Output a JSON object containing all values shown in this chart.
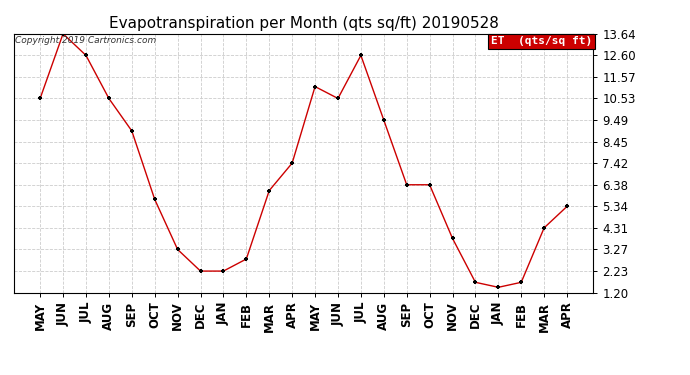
{
  "title": "Evapotranspiration per Month (qts sq/ft) 20190528",
  "copyright": "Copyright 2019 Cartronics.com",
  "legend_label": "ET  (qts/sq ft)",
  "months": [
    "MAY",
    "JUN",
    "JUL",
    "AUG",
    "SEP",
    "OCT",
    "NOV",
    "DEC",
    "JAN",
    "FEB",
    "MAR",
    "APR",
    "MAY",
    "JUN",
    "JUL",
    "AUG",
    "SEP",
    "OCT",
    "NOV",
    "DEC",
    "JAN",
    "FEB",
    "MAR",
    "APR"
  ],
  "values": [
    10.53,
    13.64,
    12.6,
    10.53,
    8.97,
    5.68,
    3.27,
    2.23,
    2.23,
    2.81,
    6.1,
    7.42,
    11.1,
    10.53,
    12.6,
    9.49,
    6.38,
    6.38,
    3.8,
    1.69,
    1.45,
    1.69,
    4.31,
    5.34
  ],
  "line_color": "#cc0000",
  "marker_color": "#000000",
  "background_color": "#ffffff",
  "grid_color": "#cccccc",
  "ylim_min": 1.2,
  "ylim_max": 13.64,
  "yticks": [
    1.2,
    2.23,
    3.27,
    4.31,
    5.34,
    6.38,
    7.42,
    8.45,
    9.49,
    10.53,
    11.57,
    12.6,
    13.64
  ],
  "legend_bg": "#cc0000",
  "legend_text_color": "#ffffff",
  "title_fontsize": 11,
  "copyright_fontsize": 6.5,
  "tick_fontsize": 8.5,
  "legend_fontsize": 8
}
